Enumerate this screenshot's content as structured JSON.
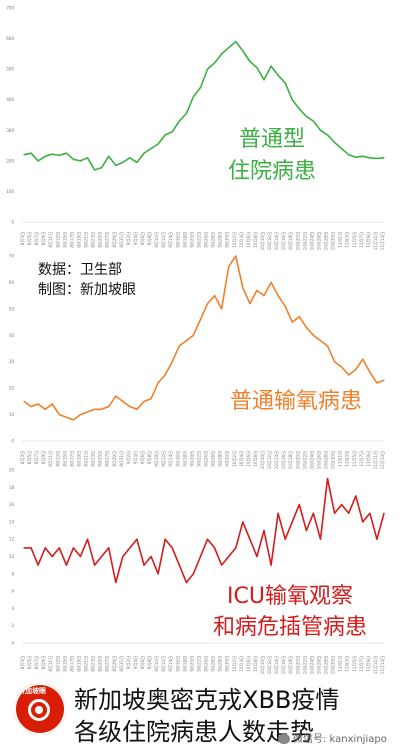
{
  "chart_data": [
    {
      "type": "line",
      "label_lines": [
        "普通型",
        "住院病患"
      ],
      "color": "#3cb043",
      "yticks": [
        "0",
        "100",
        "200",
        "300",
        "400",
        "500",
        "600",
        "700"
      ],
      "ylim": [
        0,
        700
      ],
      "x": [
        "8月3日",
        "8月5日",
        "8月7日",
        "8月9日",
        "8月11日",
        "8月13日",
        "8月15日",
        "8月17日",
        "8月19日",
        "8月21日",
        "8月23日",
        "8月25日",
        "8月27日",
        "8月29日",
        "8月31日",
        "9月2日",
        "9月4日",
        "9月6日",
        "9月8日",
        "9月10日",
        "9月12日",
        "9月14日",
        "9月16日",
        "9月18日",
        "9月20日",
        "9月22日",
        "9月24日",
        "9月26日",
        "9月28日",
        "9月30日",
        "10月2日",
        "10月4日",
        "10月6日",
        "10月8日",
        "10月10日",
        "10月12日",
        "10月14日",
        "10月16日",
        "10月18日",
        "10月20日",
        "10月22日",
        "10月24日",
        "10月26日",
        "10月28日",
        "10月30日",
        "11月1日",
        "11月3日",
        "11月5日",
        "11月7日",
        "11月9日",
        "11月11日",
        "11月13日"
      ],
      "values": [
        220,
        225,
        200,
        215,
        222,
        218,
        225,
        205,
        200,
        210,
        170,
        178,
        215,
        185,
        195,
        210,
        195,
        225,
        240,
        255,
        285,
        295,
        330,
        355,
        410,
        440,
        500,
        520,
        550,
        570,
        590,
        560,
        525,
        505,
        465,
        510,
        480,
        455,
        400,
        370,
        345,
        330,
        300,
        285,
        260,
        240,
        220,
        212,
        215,
        210,
        208,
        210
      ]
    },
    {
      "type": "line",
      "label_lines": [
        "普通输氧病患"
      ],
      "color": "#f07f2a",
      "yticks": [
        "0",
        "10",
        "20",
        "30",
        "40",
        "50",
        "60",
        "70"
      ],
      "ylim": [
        0,
        70
      ],
      "x": [
        "8月3日",
        "8月5日",
        "8月7日",
        "8月9日",
        "8月11日",
        "8月13日",
        "8月15日",
        "8月17日",
        "8月19日",
        "8月21日",
        "8月23日",
        "8月25日",
        "8月27日",
        "8月29日",
        "8月31日",
        "9月2日",
        "9月4日",
        "9月6日",
        "9月8日",
        "9月10日",
        "9月12日",
        "9月14日",
        "9月16日",
        "9月18日",
        "9月20日",
        "9月22日",
        "9月24日",
        "9月26日",
        "9月28日",
        "9月30日",
        "10月2日",
        "10月4日",
        "10月6日",
        "10月8日",
        "10月10日",
        "10月12日",
        "10月14日",
        "10月16日",
        "10月18日",
        "10月20日",
        "10月22日",
        "10月24日",
        "10月26日",
        "10月28日",
        "10月30日",
        "11月1日",
        "11月3日",
        "11月5日",
        "11月7日",
        "11月9日",
        "11月11日",
        "11月13日"
      ],
      "values": [
        15,
        13,
        14,
        12,
        14,
        10,
        9,
        8,
        10,
        11,
        12,
        12,
        13,
        17,
        15,
        13,
        12,
        15,
        16,
        22,
        25,
        30,
        36,
        38,
        40,
        46,
        52,
        55,
        50,
        66,
        70,
        58,
        52,
        57,
        55,
        60,
        55,
        51,
        45,
        47,
        43,
        40,
        38,
        36,
        30,
        28,
        25,
        27,
        31,
        26,
        22,
        23
      ]
    },
    {
      "type": "line",
      "label_lines": [
        "ICU输氧观察",
        "和病危插管病患"
      ],
      "color": "#d41c1c",
      "yticks": [
        "0",
        "2",
        "4",
        "6",
        "8",
        "10",
        "12",
        "14",
        "16",
        "18",
        "20"
      ],
      "ylim": [
        0,
        20
      ],
      "x": [
        "8月3日",
        "8月5日",
        "8月7日",
        "8月9日",
        "8月11日",
        "8月13日",
        "8月15日",
        "8月17日",
        "8月19日",
        "8月21日",
        "8月23日",
        "8月25日",
        "8月27日",
        "8月29日",
        "8月31日",
        "9月2日",
        "9月4日",
        "9月6日",
        "9月8日",
        "9月10日",
        "9月12日",
        "9月14日",
        "9月16日",
        "9月18日",
        "9月20日",
        "9月22日",
        "9月24日",
        "9月26日",
        "9月28日",
        "9月30日",
        "10月2日",
        "10月4日",
        "10月6日",
        "10月8日",
        "10月10日",
        "10月12日",
        "10月14日",
        "10月16日",
        "10月18日",
        "10月20日",
        "10月22日",
        "10月24日",
        "10月26日",
        "10月28日",
        "10月30日",
        "11月1日",
        "11月3日",
        "11月5日",
        "11月7日",
        "11月9日",
        "11月11日",
        "11月13日"
      ],
      "values": [
        11,
        11,
        9,
        11,
        10,
        11,
        9,
        11,
        10,
        12,
        9,
        10,
        11,
        7,
        10,
        11,
        12,
        9,
        10,
        8,
        12,
        11,
        9,
        7,
        8,
        10,
        12,
        11,
        9,
        10,
        11,
        14,
        12,
        10,
        13,
        9,
        15,
        12,
        14,
        16,
        13,
        15,
        12,
        19,
        15,
        16,
        15,
        17,
        14,
        15,
        12,
        15
      ]
    }
  ],
  "source_lines": [
    "数据：卫生部",
    "制图：新加坡眼"
  ],
  "logo_text": "新加坡眼",
  "headline_lines": [
    "新加坡奥密克戎XBB疫情",
    "各级住院病患人数走势"
  ],
  "watermark": "微信号: kanxinjiapo"
}
